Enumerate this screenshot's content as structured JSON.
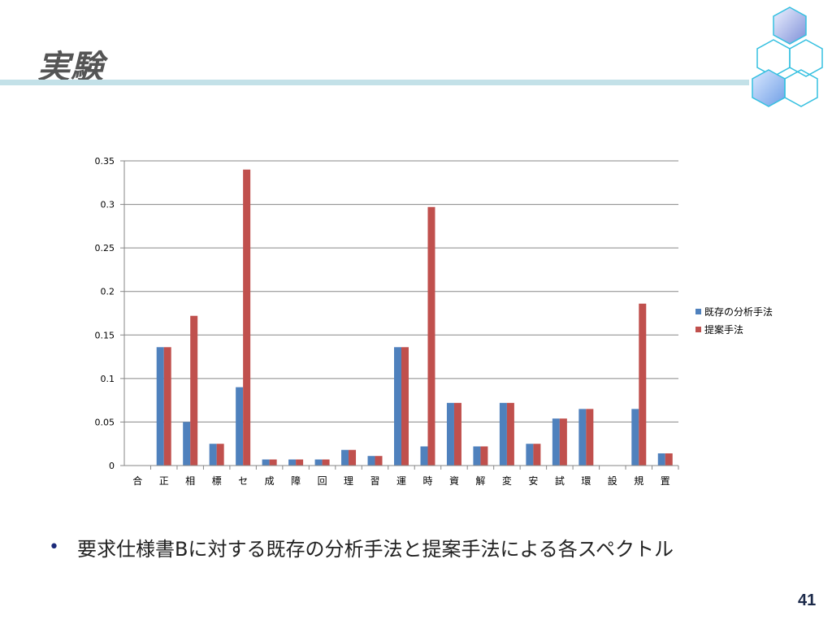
{
  "slide": {
    "title": "実験",
    "bullet_text": "要求仕様書Bに対する既存の分析手法と提案手法による各スペクトル",
    "page_number": "41"
  },
  "colors": {
    "series_existing": "#4f81bd",
    "series_proposed": "#c0504d",
    "title_rule": "#c3e1e8",
    "hex_fill_dark": "#7d9fe0",
    "hex_stroke": "#35c0e0"
  },
  "chart_data": {
    "type": "bar",
    "categories": [
      "合",
      "正",
      "相",
      "標",
      "セ",
      "成",
      "障",
      "回",
      "理",
      "習",
      "運",
      "時",
      "資",
      "解",
      "変",
      "安",
      "試",
      "環",
      "設",
      "規",
      "置"
    ],
    "series": [
      {
        "name": "既存の分析手法",
        "values": [
          0,
          0.136,
          0.05,
          0.025,
          0.09,
          0.007,
          0.007,
          0.007,
          0.018,
          0.011,
          0.136,
          0.022,
          0.072,
          0.022,
          0.072,
          0.025,
          0.054,
          0.065,
          0,
          0.065,
          0.014
        ]
      },
      {
        "name": "提案手法",
        "values": [
          0,
          0.136,
          0.172,
          0.025,
          0.34,
          0.007,
          0.007,
          0.007,
          0.018,
          0.011,
          0.136,
          0.297,
          0.072,
          0.022,
          0.072,
          0.025,
          0.054,
          0.065,
          0,
          0.186,
          0.014
        ]
      }
    ],
    "y_ticks": [
      "0",
      "0.05",
      "0.1",
      "0.15",
      "0.2",
      "0.25",
      "0.3",
      "0.35"
    ],
    "ylim": [
      0,
      0.35
    ],
    "grid": true,
    "legend_position": "right",
    "title": "",
    "xlabel": "",
    "ylabel": ""
  }
}
